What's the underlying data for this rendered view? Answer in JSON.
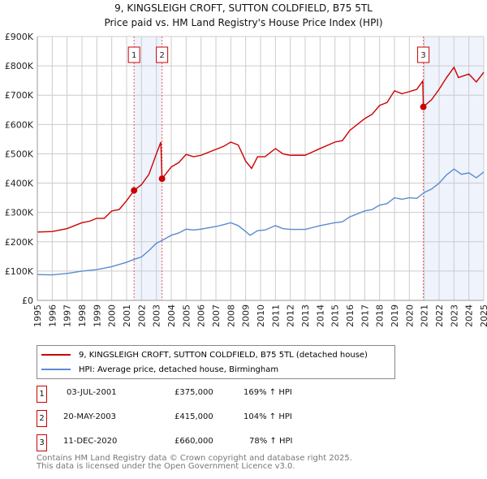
{
  "chart_data": {
    "type": "line",
    "title": "9, KINGSLEIGH CROFT, SUTTON COLDFIELD, B75 5TL",
    "subtitle": "Price paid vs. HM Land Registry's House Price Index (HPI)",
    "xlim": [
      1995,
      2025
    ],
    "ylim": [
      0,
      900000
    ],
    "y_ticks": [
      {
        "v": 0,
        "l": "£0"
      },
      {
        "v": 100000,
        "l": "£100K"
      },
      {
        "v": 200000,
        "l": "£200K"
      },
      {
        "v": 300000,
        "l": "£300K"
      },
      {
        "v": 400000,
        "l": "£400K"
      },
      {
        "v": 500000,
        "l": "£500K"
      },
      {
        "v": 600000,
        "l": "£600K"
      },
      {
        "v": 700000,
        "l": "£700K"
      },
      {
        "v": 800000,
        "l": "£800K"
      },
      {
        "v": 900000,
        "l": "£900K"
      }
    ],
    "x_ticks": [
      "1995",
      "1996",
      "1997",
      "1998",
      "1999",
      "2000",
      "2001",
      "2002",
      "2003",
      "2004",
      "2005",
      "2006",
      "2007",
      "2008",
      "2009",
      "2010",
      "2011",
      "2012",
      "2013",
      "2014",
      "2015",
      "2016",
      "2017",
      "2018",
      "2019",
      "2020",
      "2021",
      "2022",
      "2023",
      "2024",
      "2025"
    ],
    "shaded": [
      [
        2001.5,
        2003.38
      ],
      [
        2020.94,
        2025
      ]
    ],
    "series": [
      {
        "name": "9, KINGSLEIGH CROFT, SUTTON COLDFIELD, B75 5TL (detached house)",
        "color": "#cc0000",
        "x": [
          1995,
          1996,
          1997,
          1998,
          1998.5,
          1999,
          1999.5,
          2000,
          2000.5,
          2001,
          2001.5,
          2002,
          2002.5,
          2003,
          2003.3,
          2003.38,
          2004,
          2004.5,
          2005,
          2005.5,
          2006,
          2007,
          2007.5,
          2008,
          2008.5,
          2009,
          2009.4,
          2009.8,
          2010.3,
          2011,
          2011.5,
          2012,
          2013,
          2014,
          2015,
          2015.5,
          2016,
          2017,
          2017.5,
          2018,
          2018.5,
          2019,
          2019.5,
          2020,
          2020.5,
          2020.9,
          2020.94,
          2021.5,
          2022,
          2022.5,
          2023,
          2023.3,
          2024,
          2024.5,
          2025
        ],
        "y": [
          233000,
          235000,
          245000,
          265000,
          270000,
          280000,
          280000,
          305000,
          310000,
          340000,
          375000,
          395000,
          430000,
          500000,
          540000,
          415000,
          455000,
          470000,
          498000,
          490000,
          495000,
          515000,
          525000,
          540000,
          530000,
          475000,
          450000,
          490000,
          490000,
          518000,
          500000,
          495000,
          495000,
          518000,
          540000,
          545000,
          580000,
          620000,
          635000,
          665000,
          675000,
          715000,
          705000,
          712000,
          720000,
          748000,
          660000,
          685000,
          720000,
          760000,
          795000,
          760000,
          772000,
          745000,
          778000
        ]
      },
      {
        "name": "HPI: Average price, detached house, Birmingham",
        "color": "#5b8bd0",
        "x": [
          1995,
          1996,
          1997,
          1998,
          1999,
          2000,
          2001,
          2001.5,
          2002,
          2002.5,
          2003,
          2003.4,
          2004,
          2004.5,
          2005,
          2005.5,
          2006,
          2007,
          2007.5,
          2008,
          2008.5,
          2009,
          2009.3,
          2009.8,
          2010.3,
          2011,
          2011.5,
          2012,
          2013,
          2014,
          2015,
          2015.5,
          2016,
          2017,
          2017.5,
          2018,
          2018.5,
          2019,
          2019.5,
          2020,
          2020.5,
          2021,
          2021.5,
          2022,
          2022.5,
          2023,
          2023.5,
          2024,
          2024.5,
          2025
        ],
        "y": [
          88000,
          87000,
          92000,
          100000,
          105000,
          115000,
          130000,
          140000,
          148000,
          170000,
          195000,
          205000,
          222000,
          230000,
          243000,
          240000,
          243000,
          252000,
          258000,
          265000,
          255000,
          235000,
          222000,
          238000,
          240000,
          255000,
          245000,
          242000,
          242000,
          255000,
          265000,
          268000,
          285000,
          305000,
          310000,
          325000,
          330000,
          350000,
          345000,
          350000,
          348000,
          368000,
          380000,
          400000,
          428000,
          448000,
          430000,
          435000,
          418000,
          438000
        ]
      }
    ],
    "sales": [
      {
        "n": "1",
        "x": 2001.5,
        "y": 375000,
        "date": "03-JUL-2001",
        "price": "£375,000",
        "hpi": "169% ↑ HPI"
      },
      {
        "n": "2",
        "x": 2003.38,
        "y": 415000,
        "date": "20-MAY-2003",
        "price": "£415,000",
        "hpi": "104% ↑ HPI"
      },
      {
        "n": "3",
        "x": 2020.94,
        "y": 660000,
        "date": "11-DEC-2020",
        "price": "£660,000",
        "hpi": "78% ↑ HPI"
      }
    ]
  },
  "footer": {
    "line1": "Contains HM Land Registry data © Crown copyright and database right 2025.",
    "line2": "This data is licensed under the Open Government Licence v3.0."
  }
}
